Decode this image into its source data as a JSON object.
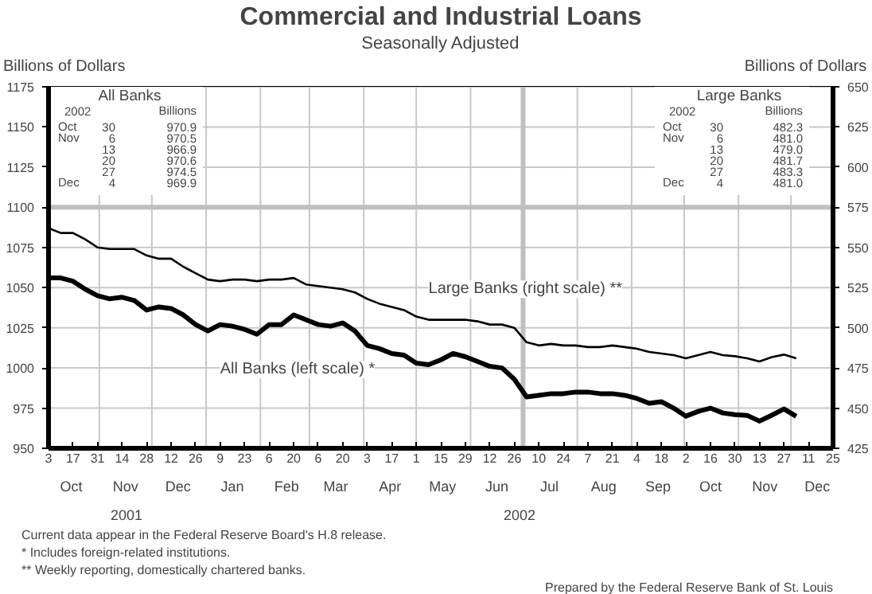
{
  "chart_data": {
    "type": "line",
    "title": "Commercial and Industrial Loans",
    "subtitle": "Seasonally Adjusted",
    "ylabel": "Billions of Dollars",
    "y2label": "Billions of Dollars",
    "x": [
      "2001-10-03",
      "2001-10-10",
      "2001-10-17",
      "2001-10-24",
      "2001-10-31",
      "2001-11-07",
      "2001-11-14",
      "2001-11-21",
      "2001-11-28",
      "2001-12-05",
      "2001-12-12",
      "2001-12-19",
      "2001-12-26",
      "2002-01-02",
      "2002-01-09",
      "2002-01-16",
      "2002-01-23",
      "2002-01-30",
      "2002-02-06",
      "2002-02-13",
      "2002-02-20",
      "2002-02-27",
      "2002-03-06",
      "2002-03-13",
      "2002-03-20",
      "2002-03-27",
      "2002-04-03",
      "2002-04-10",
      "2002-04-17",
      "2002-04-24",
      "2002-05-01",
      "2002-05-08",
      "2002-05-15",
      "2002-05-22",
      "2002-05-29",
      "2002-06-05",
      "2002-06-12",
      "2002-06-19",
      "2002-06-26",
      "2002-07-03",
      "2002-07-10",
      "2002-07-17",
      "2002-07-24",
      "2002-07-31",
      "2002-08-07",
      "2002-08-14",
      "2002-08-21",
      "2002-08-28",
      "2002-09-04",
      "2002-09-11",
      "2002-09-18",
      "2002-09-25",
      "2002-10-02",
      "2002-10-09",
      "2002-10-16",
      "2002-10-23",
      "2002-10-30",
      "2002-11-06",
      "2002-11-13",
      "2002-11-20",
      "2002-11-27",
      "2002-12-04"
    ],
    "series": [
      {
        "name": "All Banks (left scale) *",
        "color": "#000000",
        "values": [
          1056,
          1056,
          1054,
          1049,
          1045,
          1043,
          1044,
          1042,
          1036,
          1038,
          1037,
          1033,
          1027,
          1023,
          1027,
          1026,
          1024,
          1021,
          1027,
          1027,
          1033,
          1030,
          1027,
          1026,
          1028,
          1023,
          1014,
          1012,
          1009,
          1008,
          1003,
          1002,
          1005,
          1009,
          1007,
          1004,
          1001,
          1000,
          993,
          982,
          983,
          984,
          984,
          985,
          985,
          984,
          984,
          983,
          981,
          978,
          979,
          975,
          970,
          973,
          975,
          972,
          970.9,
          970.5,
          966.9,
          970.6,
          974.5,
          969.9
        ]
      },
      {
        "name": "Large Banks (right scale) **",
        "color": "#000000",
        "axis": "y2",
        "values": [
          562,
          559,
          559,
          555,
          550,
          549,
          549,
          549,
          545,
          543,
          543,
          538,
          534,
          530,
          529,
          530,
          530,
          529,
          530,
          530,
          531,
          527,
          526,
          525,
          524,
          522,
          518,
          515,
          513,
          511,
          507,
          505,
          505,
          505,
          505,
          504,
          502,
          502,
          500,
          491,
          489,
          490,
          489,
          489,
          488,
          488,
          489,
          488,
          487,
          485,
          484,
          483,
          481,
          483,
          485,
          483,
          482.3,
          481.0,
          479.0,
          481.7,
          483.3,
          481.0
        ]
      }
    ],
    "xlim": [
      "2001-10-03",
      "2002-12-25"
    ],
    "xticks": [
      {
        "value": "2001-10-03",
        "label": "3"
      },
      {
        "value": "2001-10-17",
        "label": "17"
      },
      {
        "value": "2001-10-31",
        "label": "31"
      },
      {
        "value": "2001-11-14",
        "label": "14"
      },
      {
        "value": "2001-11-28",
        "label": "28"
      },
      {
        "value": "2001-12-12",
        "label": "12"
      },
      {
        "value": "2001-12-26",
        "label": "26"
      },
      {
        "value": "2002-01-09",
        "label": "9"
      },
      {
        "value": "2002-01-23",
        "label": "23"
      },
      {
        "value": "2002-02-06",
        "label": "6"
      },
      {
        "value": "2002-02-20",
        "label": "20"
      },
      {
        "value": "2002-03-06",
        "label": "6"
      },
      {
        "value": "2002-03-20",
        "label": "20"
      },
      {
        "value": "2002-04-03",
        "label": "3"
      },
      {
        "value": "2002-04-17",
        "label": "17"
      },
      {
        "value": "2002-05-01",
        "label": "1"
      },
      {
        "value": "2002-05-15",
        "label": "15"
      },
      {
        "value": "2002-05-29",
        "label": "29"
      },
      {
        "value": "2002-06-12",
        "label": "12"
      },
      {
        "value": "2002-06-26",
        "label": "26"
      },
      {
        "value": "2002-07-10",
        "label": "10"
      },
      {
        "value": "2002-07-24",
        "label": "24"
      },
      {
        "value": "2002-08-07",
        "label": "7"
      },
      {
        "value": "2002-08-21",
        "label": "21"
      },
      {
        "value": "2002-09-04",
        "label": "4"
      },
      {
        "value": "2002-09-18",
        "label": "18"
      },
      {
        "value": "2002-10-02",
        "label": "2"
      },
      {
        "value": "2002-10-16",
        "label": "16"
      },
      {
        "value": "2002-10-30",
        "label": "30"
      },
      {
        "value": "2002-11-13",
        "label": "13"
      },
      {
        "value": "2002-11-27",
        "label": "27"
      },
      {
        "value": "2002-12-11",
        "label": "11"
      },
      {
        "value": "2002-12-25",
        "label": "25"
      }
    ],
    "ylim": [
      950,
      1175
    ],
    "yticks": [
      950,
      975,
      1000,
      1025,
      1050,
      1075,
      1100,
      1125,
      1150,
      1175
    ],
    "y2lim": [
      425,
      650
    ],
    "y2ticks": [
      425,
      450,
      475,
      500,
      525,
      550,
      575,
      600,
      625,
      650
    ],
    "grid": true,
    "line_style": "solid",
    "marker": "none",
    "ref_lines": [
      {
        "axis": "x",
        "value": "2002-07-01",
        "color": "#c0c0c0"
      },
      {
        "axis": "y",
        "value": 1100,
        "color": "#c0c0c0"
      }
    ],
    "annotations": [
      "Current data appear in the Federal Reserve Board's H.8 release.",
      "*  Includes foreign-related institutions.",
      "** Weekly reporting, domestically chartered banks.",
      "Prepared by the Federal Reserve Bank of St. Louis",
      "All Banks",
      "2002",
      "Billions",
      "Oct 30",
      "970.9",
      "Nov 6",
      "970.5",
      "13",
      "966.9",
      "20",
      "970.6",
      "27",
      "974.5",
      "Dec 4",
      "969.9",
      "Large Banks",
      "2002",
      "Billions",
      "Oct 30",
      "482.3",
      "Nov 6",
      "481.0",
      "13",
      "479.0",
      "20",
      "481.7",
      "27",
      "483.3",
      "Dec 4",
      "481.0",
      "Oct",
      "Nov",
      "Dec",
      "Jan",
      "Feb",
      "Mar",
      "Apr",
      "May",
      "Jun",
      "Jul",
      "Aug",
      "Sep",
      "Oct",
      "Nov",
      "Dec",
      "2001",
      "2002"
    ]
  }
}
